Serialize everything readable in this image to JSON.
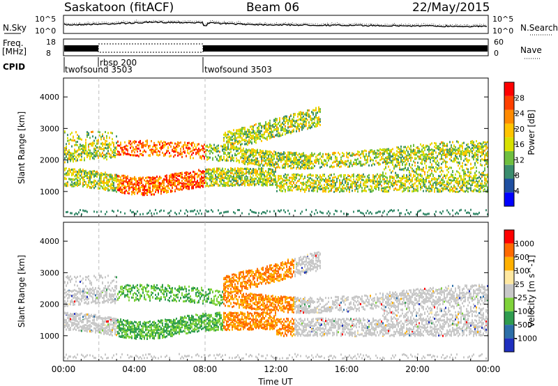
{
  "header": {
    "site": "Saskatoon (fitACF)",
    "beam": "Beam 06",
    "date": "22/May/2015"
  },
  "side_labels": {
    "nsky": "N.Sky",
    "freq": "Freq.",
    "freq_unit": "[MHz]",
    "cpid": "CPID",
    "nsearch": "N.Search",
    "nave": "Nave"
  },
  "noise_panel": {
    "left_ticks": [
      "10^5",
      "10^0"
    ],
    "right_ticks": [
      "10^5",
      "10^0"
    ]
  },
  "freq_panel": {
    "left_ticks": [
      "18",
      "8"
    ],
    "right_ticks": [
      "60",
      "0"
    ]
  },
  "cpid_labels": [
    {
      "label": "twofsound 3503",
      "start": "00:00"
    },
    {
      "label": "rbsp 200",
      "start": "02:00"
    },
    {
      "label": "twofsound 3503",
      "start": "08:00"
    }
  ],
  "colors": {
    "power_scale": [
      "#0000ff",
      "#1f4fa0",
      "#3b8d6e",
      "#6fbf3f",
      "#d8e000",
      "#ffc400",
      "#ff8a00",
      "#ff4000",
      "#ff0000"
    ],
    "velocity_scale": [
      "#ff0000",
      "#ff6a00",
      "#ffb000",
      "#ffe8a0",
      "#c8c8c8",
      "#7fd23a",
      "#2f9c4f",
      "#2d6fa8",
      "#1f2fbf"
    ]
  },
  "chart_data": [
    {
      "type": "heatmap",
      "title": "Power",
      "xlabel": "",
      "ylabel": "Slant Range [km]",
      "x_ticks": [
        "00:00",
        "04:00",
        "08:00",
        "12:00",
        "16:00",
        "20:00",
        "00:00"
      ],
      "y_ticks": [
        1000,
        2000,
        3000,
        4000
      ],
      "ylim": [
        200,
        4600
      ],
      "colorbar": {
        "label": "Power [dB]",
        "ticks": [
          4,
          8,
          12,
          16,
          20,
          24,
          28
        ],
        "range": [
          0,
          32
        ]
      },
      "dashed_markers": [
        "02:00",
        "08:00"
      ]
    },
    {
      "type": "heatmap",
      "title": "Velocity",
      "xlabel": "Time UT",
      "ylabel": "Slant Range [km]",
      "x_ticks": [
        "00:00",
        "04:00",
        "08:00",
        "12:00",
        "16:00",
        "20:00",
        "00:00"
      ],
      "y_ticks": [
        1000,
        2000,
        3000,
        4000
      ],
      "ylim": [
        200,
        4600
      ],
      "colorbar": {
        "label": "Velocity [m s^-1]",
        "ticks": [
          1000,
          500,
          100,
          25,
          -25,
          -100,
          -500,
          -1000
        ]
      },
      "dashed_markers": [
        "02:00",
        "08:00"
      ]
    }
  ]
}
